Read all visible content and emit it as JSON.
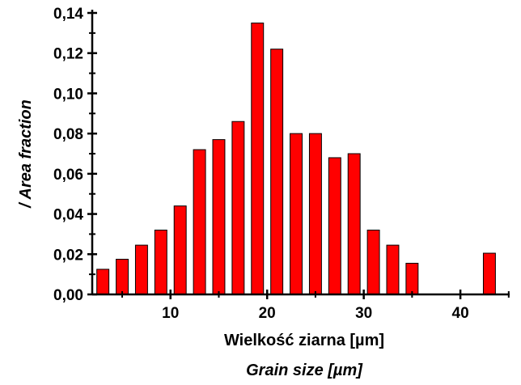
{
  "chart_data": {
    "type": "bar",
    "xlabel": "Wielkość ziarna [µm]",
    "xlabel_en": "Grain size [µm]",
    "ylabel": "/ Area fraction",
    "xlim": [
      1.9,
      45.1
    ],
    "ylim": [
      0,
      0.14
    ],
    "x_ticks": [
      10,
      20,
      30,
      40
    ],
    "x_tick_labels": [
      "10",
      "20",
      "30",
      "40"
    ],
    "y_ticks": [
      0,
      0.02,
      0.04,
      0.06,
      0.08,
      0.1,
      0.12,
      0.14
    ],
    "y_tick_labels": [
      "0,00",
      "0,02",
      "0,04",
      "0,06",
      "0,08",
      "0,10",
      "0,12",
      "0,14"
    ],
    "bar_color": "#ff0000",
    "bar_edge_color": "#000000",
    "bar_width": 1.25,
    "grid": false,
    "legend": "none",
    "x": [
      3,
      5,
      7,
      9,
      11,
      13,
      15,
      17,
      19,
      21,
      23,
      25,
      27,
      29,
      31,
      33,
      35,
      37,
      39,
      41,
      43
    ],
    "values": [
      0.0125,
      0.0175,
      0.0245,
      0.032,
      0.044,
      0.072,
      0.077,
      0.086,
      0.135,
      0.122,
      0.08,
      0.08,
      0.068,
      0.07,
      0.032,
      0.0245,
      0.0155,
      0,
      0,
      0,
      0.0205
    ]
  }
}
